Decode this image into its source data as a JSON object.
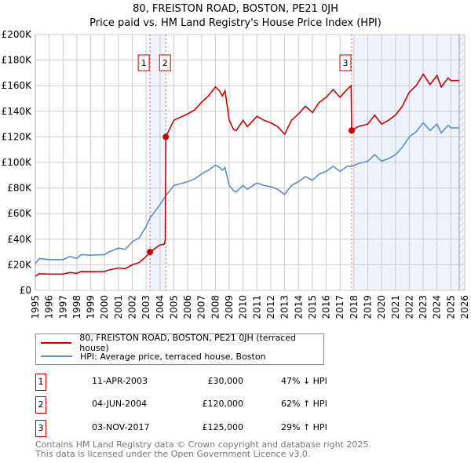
{
  "title": "80, FREISTON ROAD, BOSTON, PE21 0JH",
  "subtitle": "Price paid vs. HM Land Registry's House Price Index (HPI)",
  "chart_data": {
    "type": "line",
    "title": "80, FREISTON ROAD, BOSTON, PE21 0JH",
    "subtitle": "Price paid vs. HM Land Registry's House Price Index (HPI)",
    "xlim": [
      1995,
      2026
    ],
    "ylim": [
      0,
      200000
    ],
    "x_ticks": [
      "1995",
      "1996",
      "1997",
      "1998",
      "1999",
      "2000",
      "2001",
      "2002",
      "2003",
      "2004",
      "2005",
      "2006",
      "2007",
      "2008",
      "2009",
      "2010",
      "2011",
      "2012",
      "2013",
      "2014",
      "2015",
      "2016",
      "2017",
      "2018",
      "2019",
      "2020",
      "2021",
      "2022",
      "2023",
      "2024",
      "2025",
      "2026"
    ],
    "y_ticks": [
      {
        "v": 0,
        "label": "£0"
      },
      {
        "v": 20000,
        "label": "£20K"
      },
      {
        "v": 40000,
        "label": "£40K"
      },
      {
        "v": 60000,
        "label": "£60K"
      },
      {
        "v": 80000,
        "label": "£80K"
      },
      {
        "v": 100000,
        "label": "£100K"
      },
      {
        "v": 120000,
        "label": "£120K"
      },
      {
        "v": 140000,
        "label": "£140K"
      },
      {
        "v": 160000,
        "label": "£160K"
      },
      {
        "v": 180000,
        "label": "£180K"
      },
      {
        "v": 200000,
        "label": "£200K"
      }
    ],
    "grid": true,
    "shaded_ranges": [
      [
        2003.28,
        2004.42
      ],
      [
        2017.95,
        2026
      ]
    ],
    "hatched_from": 2025.6,
    "series": [
      {
        "name": "80, FREISTON ROAD, BOSTON, PE21 0JH (terraced house)",
        "color": "#cc0000",
        "x": [
          1995,
          1995.3,
          1996,
          1997,
          1997.5,
          1998,
          1998.3,
          1999,
          2000,
          2000.3,
          2001,
          2001.5,
          2002,
          2002.5,
          2003,
          2003.28,
          2004,
          2004.3,
          2004.38,
          2004.42,
          2005,
          2006,
          2006.5,
          2007,
          2007.5,
          2008,
          2008.3,
          2008.5,
          2008.7,
          2009,
          2009.3,
          2009.5,
          2010,
          2010.3,
          2011,
          2011.5,
          2012,
          2012.5,
          2013,
          2013.5,
          2014,
          2014.5,
          2015,
          2015.5,
          2016,
          2016.5,
          2017,
          2017.5,
          2017.8,
          2017.84,
          2018.3,
          2019,
          2019.5,
          2020,
          2020.5,
          2021,
          2021.5,
          2022,
          2022.5,
          2023,
          2023.5,
          2024,
          2024.3,
          2024.8,
          2025,
          2025.6
        ],
        "y": [
          11000,
          13000,
          12700,
          12700,
          14000,
          13300,
          14800,
          14600,
          14800,
          15900,
          17500,
          17000,
          20000,
          21700,
          26500,
          30000,
          35500,
          36000,
          39000,
          120000,
          133000,
          138000,
          141000,
          147000,
          152000,
          159000,
          156000,
          152000,
          156000,
          133000,
          126000,
          125000,
          133000,
          128000,
          136000,
          133000,
          131000,
          128000,
          122000,
          133000,
          138000,
          144000,
          139000,
          147000,
          151000,
          157000,
          151000,
          157000,
          160000,
          125000,
          128000,
          130000,
          137000,
          130000,
          133000,
          137000,
          144000,
          155000,
          160000,
          169000,
          161000,
          168000,
          159000,
          166000,
          164000,
          164000
        ]
      },
      {
        "name": "HPI: Average price, terraced house, Boston",
        "color": "#5b8bd0",
        "x": [
          1995,
          1995.3,
          1996,
          1997,
          1997.5,
          1998,
          1998.3,
          1999,
          2000,
          2000.3,
          2001,
          2001.5,
          2002,
          2002.5,
          2003,
          2003.28,
          2004,
          2004.42,
          2005,
          2006,
          2006.5,
          2007,
          2007.5,
          2008,
          2008.3,
          2008.5,
          2008.7,
          2009,
          2009.3,
          2009.5,
          2010,
          2010.3,
          2011,
          2011.5,
          2012,
          2012.5,
          2013,
          2013.5,
          2014,
          2014.5,
          2015,
          2015.5,
          2016,
          2016.5,
          2017,
          2017.5,
          2017.84,
          2018.3,
          2019,
          2019.5,
          2020,
          2020.5,
          2021,
          2021.5,
          2022,
          2022.5,
          2023,
          2023.5,
          2024,
          2024.3,
          2024.8,
          2025,
          2025.6
        ],
        "y": [
          21000,
          25000,
          24000,
          24000,
          26500,
          25000,
          28000,
          27500,
          28000,
          30000,
          33000,
          32000,
          38000,
          41000,
          50000,
          56600,
          67000,
          74000,
          82000,
          85000,
          87000,
          91000,
          94000,
          98000,
          96000,
          94000,
          96000,
          82000,
          78000,
          77000,
          82000,
          79000,
          84000,
          82000,
          81000,
          79000,
          75000,
          82000,
          85000,
          89000,
          86000,
          91000,
          93000,
          97000,
          93000,
          97000,
          97000,
          99000,
          101000,
          106000,
          101000,
          103000,
          106000,
          112000,
          120000,
          124000,
          131000,
          125000,
          130000,
          123000,
          129000,
          127000,
          127000
        ]
      }
    ],
    "sales": [
      {
        "id": "1",
        "x": 2003.28,
        "y": 30000,
        "date": "11-APR-2003",
        "price": "£30,000",
        "hpi": "47% ↓ HPI"
      },
      {
        "id": "2",
        "x": 2004.42,
        "y": 120000,
        "date": "04-JUN-2004",
        "price": "£120,000",
        "hpi": "62% ↑ HPI"
      },
      {
        "id": "3",
        "x": 2017.84,
        "y": 125000,
        "date": "03-NOV-2017",
        "price": "£125,000",
        "hpi": "29% ↑ HPI"
      }
    ]
  },
  "legend": {
    "property": "80, FREISTON ROAD, BOSTON, PE21 0JH (terraced house)",
    "hpi": "HPI: Average price, terraced house, Boston"
  },
  "footer": {
    "line1": "Contains HM Land Registry data © Crown copyright and database right 2025.",
    "line2": "This data is licensed under the Open Government Licence v3.0."
  }
}
